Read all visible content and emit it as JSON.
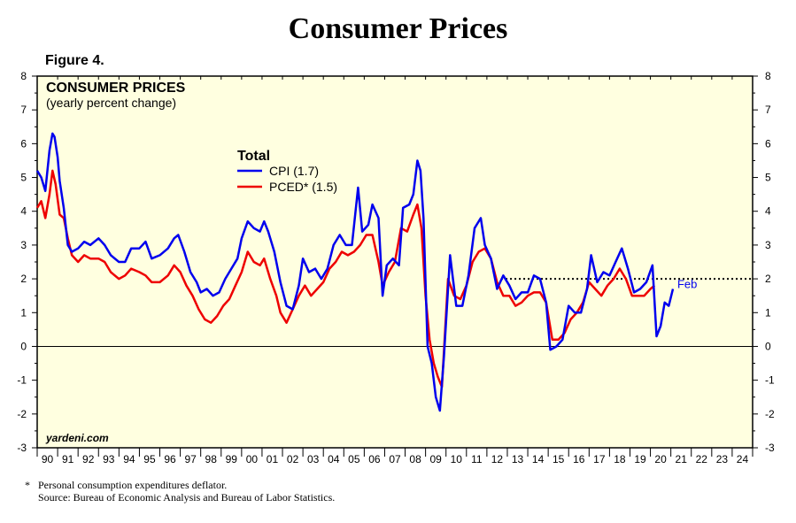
{
  "page": {
    "title": "Consumer Prices",
    "figure_label": "Figure 4.",
    "footnote_marker": "*",
    "footnote": "Personal consumption expenditures deflator.",
    "source": "Source: Bureau of Economic Analysis and Bureau of Labor Statistics."
  },
  "colors": {
    "background": "#ffffe0",
    "cpi": "#0000ee",
    "pced": "#ee0000",
    "feb_label": "#0000ee"
  },
  "chart_data": {
    "type": "line",
    "title": "CONSUMER PRICES",
    "subtitle": "(yearly percent change)",
    "legend_title": "Total",
    "watermark": "yardeni.com",
    "end_label": "Feb",
    "ylim": [
      -3,
      8
    ],
    "y_ticks": [
      "-3",
      "-2",
      "-1",
      "0",
      "1",
      "2",
      "3",
      "4",
      "5",
      "6",
      "7",
      "8"
    ],
    "x_ticks": [
      "90",
      "91",
      "92",
      "93",
      "94",
      "95",
      "96",
      "97",
      "98",
      "99",
      "00",
      "01",
      "02",
      "03",
      "04",
      "05",
      "06",
      "07",
      "08",
      "09",
      "10",
      "11",
      "12",
      "13",
      "14",
      "15",
      "16",
      "17",
      "18",
      "19",
      "20",
      "21",
      "22",
      "23",
      "24"
    ],
    "xlim": [
      1990.0,
      2025.0
    ],
    "reference_line": {
      "y": 2,
      "from_x": 2012.7,
      "style": "dotted"
    },
    "zero_line": 0,
    "legend_position": "upper-middle",
    "series": [
      {
        "name": "CPI (1.7)",
        "x": [
          1990.0,
          1990.2,
          1990.4,
          1990.6,
          1990.75,
          1990.85,
          1991.0,
          1991.1,
          1991.3,
          1991.5,
          1991.7,
          1992.0,
          1992.3,
          1992.6,
          1993.0,
          1993.3,
          1993.6,
          1994.0,
          1994.3,
          1994.6,
          1995.0,
          1995.3,
          1995.6,
          1996.0,
          1996.4,
          1996.7,
          1996.9,
          1997.2,
          1997.5,
          1997.8,
          1998.0,
          1998.3,
          1998.6,
          1998.9,
          1999.2,
          1999.5,
          1999.8,
          2000.0,
          2000.3,
          2000.6,
          2000.9,
          2001.1,
          2001.3,
          2001.6,
          2001.9,
          2002.2,
          2002.5,
          2002.8,
          2003.0,
          2003.3,
          2003.6,
          2003.9,
          2004.2,
          2004.5,
          2004.8,
          2005.1,
          2005.4,
          2005.7,
          2005.9,
          2006.2,
          2006.4,
          2006.7,
          2006.9,
          2007.1,
          2007.4,
          2007.7,
          2007.9,
          2008.2,
          2008.4,
          2008.6,
          2008.75,
          2008.9,
          2009.1,
          2009.3,
          2009.5,
          2009.7,
          2009.9,
          2010.2,
          2010.5,
          2010.8,
          2011.1,
          2011.4,
          2011.7,
          2011.9,
          2012.2,
          2012.5,
          2012.8,
          2013.1,
          2013.4,
          2013.7,
          2014.0,
          2014.3,
          2014.6,
          2014.9,
          2015.1,
          2015.4,
          2015.7,
          2016.0,
          2016.3,
          2016.6,
          2016.9,
          2017.1,
          2017.4,
          2017.7,
          2018.0,
          2018.3,
          2018.6,
          2018.9,
          2019.2,
          2019.5,
          2019.8,
          2020.1,
          2020.3,
          2020.5,
          2020.7,
          2020.9,
          2021.1
        ],
        "values": [
          5.2,
          5.0,
          4.6,
          5.8,
          6.3,
          6.2,
          5.6,
          4.9,
          4.1,
          3.0,
          2.8,
          2.9,
          3.1,
          3.0,
          3.2,
          3.0,
          2.7,
          2.5,
          2.5,
          2.9,
          2.9,
          3.1,
          2.6,
          2.7,
          2.9,
          3.2,
          3.3,
          2.8,
          2.2,
          1.9,
          1.6,
          1.7,
          1.5,
          1.6,
          2.0,
          2.3,
          2.6,
          3.2,
          3.7,
          3.5,
          3.4,
          3.7,
          3.4,
          2.8,
          1.9,
          1.2,
          1.1,
          1.8,
          2.6,
          2.2,
          2.3,
          2.0,
          2.3,
          3.0,
          3.3,
          3.0,
          3.0,
          4.7,
          3.4,
          3.6,
          4.2,
          3.8,
          1.5,
          2.4,
          2.6,
          2.4,
          4.1,
          4.2,
          4.5,
          5.5,
          5.2,
          3.8,
          0.0,
          -0.5,
          -1.5,
          -1.9,
          -0.3,
          2.7,
          1.2,
          1.2,
          2.1,
          3.5,
          3.8,
          3.0,
          2.6,
          1.7,
          2.1,
          1.8,
          1.4,
          1.6,
          1.6,
          2.1,
          2.0,
          1.3,
          -0.1,
          -0.0,
          0.2,
          1.2,
          1.0,
          1.0,
          1.7,
          2.7,
          1.9,
          2.2,
          2.1,
          2.5,
          2.9,
          2.3,
          1.6,
          1.7,
          1.9,
          2.4,
          0.3,
          0.6,
          1.3,
          1.2,
          1.7
        ]
      },
      {
        "name": "PCED* (1.5)",
        "x": [
          1990.0,
          1990.2,
          1990.4,
          1990.6,
          1990.75,
          1990.9,
          1991.1,
          1991.3,
          1991.5,
          1991.7,
          1992.0,
          1992.3,
          1992.6,
          1993.0,
          1993.3,
          1993.6,
          1994.0,
          1994.3,
          1994.6,
          1995.0,
          1995.3,
          1995.6,
          1996.0,
          1996.4,
          1996.7,
          1997.0,
          1997.3,
          1997.6,
          1997.9,
          1998.2,
          1998.5,
          1998.8,
          1999.1,
          1999.4,
          1999.7,
          2000.0,
          2000.3,
          2000.6,
          2000.9,
          2001.1,
          2001.4,
          2001.7,
          2001.9,
          2002.2,
          2002.5,
          2002.8,
          2003.1,
          2003.4,
          2003.7,
          2004.0,
          2004.3,
          2004.6,
          2004.9,
          2005.2,
          2005.5,
          2005.8,
          2006.1,
          2006.4,
          2006.7,
          2006.9,
          2007.2,
          2007.5,
          2007.8,
          2008.1,
          2008.4,
          2008.6,
          2008.8,
          2009.0,
          2009.2,
          2009.4,
          2009.6,
          2009.8,
          2010.1,
          2010.4,
          2010.7,
          2011.0,
          2011.3,
          2011.6,
          2011.9,
          2012.2,
          2012.5,
          2012.8,
          2013.1,
          2013.4,
          2013.7,
          2014.0,
          2014.3,
          2014.6,
          2014.9,
          2015.2,
          2015.5,
          2015.8,
          2016.1,
          2016.4,
          2016.7,
          2017.0,
          2017.3,
          2017.6,
          2017.9,
          2018.2,
          2018.5,
          2018.8,
          2019.1,
          2019.4,
          2019.7,
          2020.0,
          2020.2
        ],
        "values": [
          4.1,
          4.3,
          3.8,
          4.5,
          5.2,
          4.8,
          3.9,
          3.8,
          3.2,
          2.7,
          2.5,
          2.7,
          2.6,
          2.6,
          2.5,
          2.2,
          2.0,
          2.1,
          2.3,
          2.2,
          2.1,
          1.9,
          1.9,
          2.1,
          2.4,
          2.2,
          1.8,
          1.5,
          1.1,
          0.8,
          0.7,
          0.9,
          1.2,
          1.4,
          1.8,
          2.2,
          2.8,
          2.5,
          2.4,
          2.6,
          2.0,
          1.5,
          1.0,
          0.7,
          1.1,
          1.5,
          1.8,
          1.5,
          1.7,
          1.9,
          2.3,
          2.5,
          2.8,
          2.7,
          2.8,
          3.0,
          3.3,
          3.3,
          2.5,
          1.8,
          2.2,
          2.5,
          3.5,
          3.4,
          3.9,
          4.2,
          3.5,
          1.5,
          0.2,
          -0.5,
          -0.9,
          -1.2,
          2.0,
          1.5,
          1.4,
          1.8,
          2.5,
          2.8,
          2.9,
          2.6,
          1.9,
          1.5,
          1.5,
          1.2,
          1.3,
          1.5,
          1.6,
          1.6,
          1.3,
          0.2,
          0.2,
          0.4,
          0.8,
          1.0,
          1.3,
          1.9,
          1.7,
          1.5,
          1.8,
          2.0,
          2.3,
          2.0,
          1.5,
          1.5,
          1.5,
          1.7,
          1.8
        ]
      }
    ]
  }
}
